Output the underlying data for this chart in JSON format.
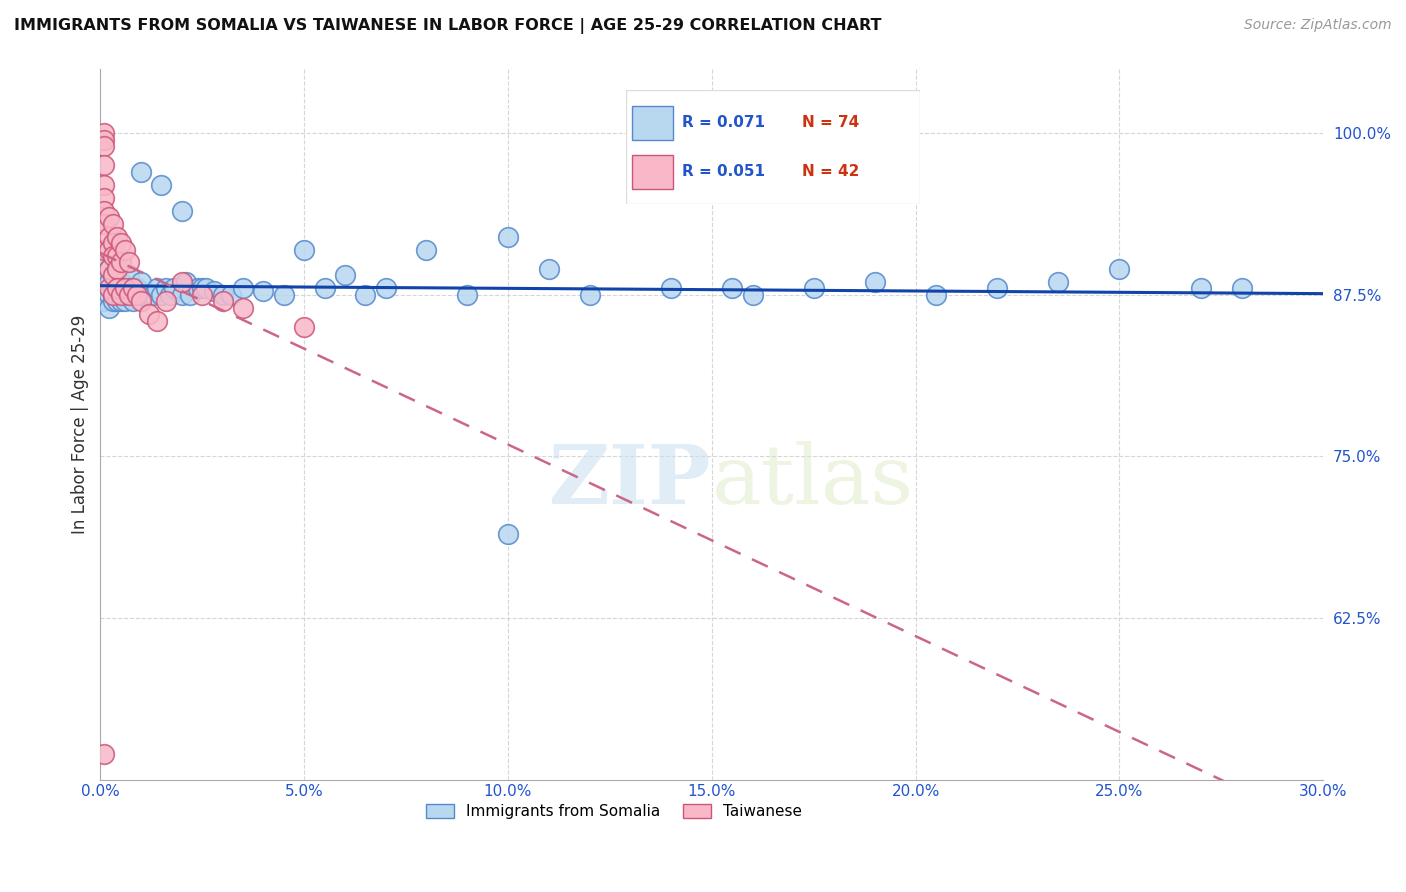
{
  "title": "IMMIGRANTS FROM SOMALIA VS TAIWANESE IN LABOR FORCE | AGE 25-29 CORRELATION CHART",
  "source": "Source: ZipAtlas.com",
  "ylabel": "In Labor Force | Age 25-29",
  "xlim": [
    0.0,
    0.3
  ],
  "ylim": [
    0.5,
    1.05
  ],
  "xticks": [
    0.0,
    0.05,
    0.1,
    0.15,
    0.2,
    0.25,
    0.3
  ],
  "xticklabels": [
    "0.0%",
    "5.0%",
    "10.0%",
    "15.0%",
    "20.0%",
    "25.0%",
    "30.0%"
  ],
  "yticks": [
    0.625,
    0.75,
    0.875,
    1.0
  ],
  "yticklabels": [
    "62.5%",
    "75.0%",
    "87.5%",
    "100.0%"
  ],
  "somalia_R": "0.071",
  "somalia_N": "74",
  "taiwanese_R": "0.051",
  "taiwanese_N": "42",
  "somalia_face": "#b8d8f0",
  "somalia_edge": "#5588cc",
  "taiwanese_face": "#f8b8c8",
  "taiwanese_edge": "#cc5577",
  "somalia_trend_color": "#1144aa",
  "taiwanese_trend_color": "#cc6688",
  "background_color": "#ffffff",
  "watermark_zip": "ZIP",
  "watermark_atlas": "atlas",
  "legend_r_color": "#2255cc",
  "legend_n_color": "#cc3311",
  "somalia_x": [
    0.001,
    0.001,
    0.001,
    0.001,
    0.001,
    0.002,
    0.002,
    0.002,
    0.002,
    0.003,
    0.003,
    0.003,
    0.004,
    0.004,
    0.004,
    0.005,
    0.005,
    0.005,
    0.006,
    0.006,
    0.007,
    0.007,
    0.007,
    0.008,
    0.008,
    0.009,
    0.009,
    0.01,
    0.01,
    0.011,
    0.012,
    0.013,
    0.014,
    0.015,
    0.016,
    0.017,
    0.018,
    0.02,
    0.021,
    0.022,
    0.024,
    0.025,
    0.026,
    0.028,
    0.03,
    0.032,
    0.035,
    0.04,
    0.045,
    0.05,
    0.055,
    0.06,
    0.065,
    0.07,
    0.08,
    0.09,
    0.1,
    0.11,
    0.12,
    0.14,
    0.16,
    0.175,
    0.19,
    0.205,
    0.22,
    0.235,
    0.25,
    0.27,
    0.015,
    0.02,
    0.1,
    0.155,
    0.28,
    0.01
  ],
  "somalia_y": [
    0.88,
    0.89,
    0.9,
    0.875,
    0.87,
    0.885,
    0.895,
    0.875,
    0.865,
    0.89,
    0.875,
    0.87,
    0.88,
    0.875,
    0.87,
    0.885,
    0.875,
    0.87,
    0.875,
    0.87,
    0.89,
    0.88,
    0.875,
    0.875,
    0.87,
    0.88,
    0.875,
    0.885,
    0.875,
    0.875,
    0.875,
    0.875,
    0.88,
    0.875,
    0.88,
    0.875,
    0.88,
    0.875,
    0.885,
    0.875,
    0.88,
    0.88,
    0.88,
    0.878,
    0.875,
    0.875,
    0.88,
    0.878,
    0.875,
    0.91,
    0.88,
    0.89,
    0.875,
    0.88,
    0.91,
    0.875,
    0.92,
    0.895,
    0.875,
    0.88,
    0.875,
    0.88,
    0.885,
    0.875,
    0.88,
    0.885,
    0.895,
    0.88,
    0.96,
    0.94,
    0.69,
    0.88,
    0.88,
    0.97
  ],
  "taiwanese_x": [
    0.001,
    0.001,
    0.001,
    0.001,
    0.001,
    0.001,
    0.001,
    0.001,
    0.001,
    0.002,
    0.002,
    0.002,
    0.002,
    0.002,
    0.003,
    0.003,
    0.003,
    0.003,
    0.003,
    0.004,
    0.004,
    0.004,
    0.004,
    0.005,
    0.005,
    0.005,
    0.006,
    0.006,
    0.007,
    0.007,
    0.008,
    0.009,
    0.01,
    0.012,
    0.014,
    0.016,
    0.02,
    0.025,
    0.03,
    0.035,
    0.05,
    0.001
  ],
  "taiwanese_y": [
    1.0,
    0.995,
    0.99,
    0.975,
    0.96,
    0.95,
    0.94,
    0.93,
    0.91,
    0.935,
    0.92,
    0.91,
    0.895,
    0.88,
    0.93,
    0.915,
    0.905,
    0.89,
    0.875,
    0.92,
    0.905,
    0.895,
    0.88,
    0.915,
    0.9,
    0.875,
    0.91,
    0.88,
    0.9,
    0.875,
    0.88,
    0.875,
    0.87,
    0.86,
    0.855,
    0.87,
    0.885,
    0.875,
    0.87,
    0.865,
    0.85,
    0.52
  ]
}
